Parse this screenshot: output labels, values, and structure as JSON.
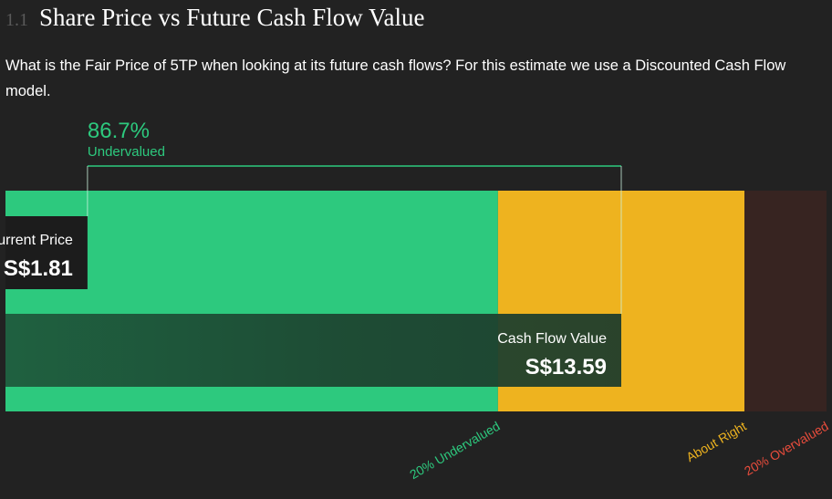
{
  "section": {
    "number": "1.1",
    "title": "Share Price vs Future Cash Flow Value"
  },
  "description": "What is the Fair Price of 5TP when looking at its future cash flows? For this estimate we use a Discounted Cash Flow model.",
  "colors": {
    "undervalued": "#2dc97e",
    "about_right": "#eeb31f",
    "overvalued": "#372421",
    "overvalued_label": "#e74c3c",
    "label_box": "#1c1c1c",
    "cash_flow_bar": "#1f4a34"
  },
  "chart_data": {
    "type": "bar",
    "title": "",
    "current_price": {
      "label": "Current Price",
      "value": 1.81,
      "display": "S$1.81"
    },
    "cash_flow_value": {
      "label": "Cash Flow Value",
      "value": 13.59,
      "display": "S$13.59"
    },
    "difference": {
      "percent": "86.7%",
      "status": "Undervalued"
    },
    "zones": [
      {
        "name": "20% Undervalued",
        "from": 0,
        "to": 10.87
      },
      {
        "name": "About Right",
        "from": 10.87,
        "to": 16.31
      },
      {
        "name": "20% Overvalued",
        "from": 16.31,
        "to": 18.12
      }
    ],
    "xlim": [
      0,
      18.12
    ]
  }
}
